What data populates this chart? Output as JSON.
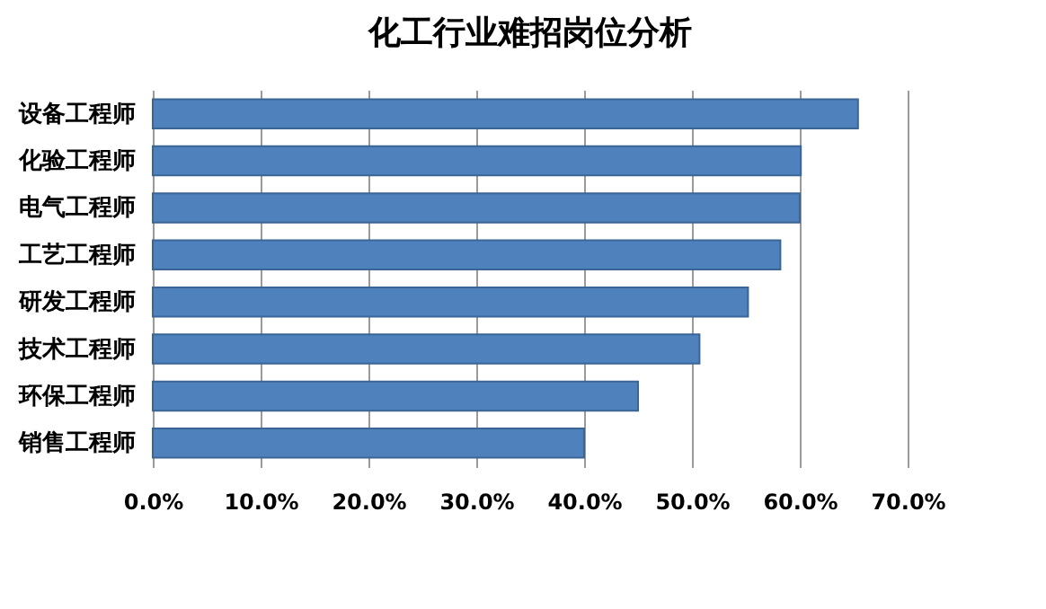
{
  "chart_data": {
    "type": "bar",
    "orientation": "horizontal",
    "title": "化工行业难招岗位分析",
    "categories": [
      "设备工程师",
      "化验工程师",
      "电气工程师",
      "工艺工程师",
      "研发工程师",
      "技术工程师",
      "环保工程师",
      "销售工程师"
    ],
    "values": [
      65.4,
      60.1,
      60.0,
      58.2,
      55.2,
      50.7,
      45.0,
      40.0
    ],
    "color": "#4f81bd",
    "xlim": [
      0,
      70
    ],
    "xticks": [
      {
        "value": 0,
        "label": "0.0%"
      },
      {
        "value": 10,
        "label": "10.0%"
      },
      {
        "value": 20,
        "label": "20.0%"
      },
      {
        "value": 30,
        "label": "30.0%"
      },
      {
        "value": 40,
        "label": "40.0%"
      },
      {
        "value": 50,
        "label": "50.0%"
      },
      {
        "value": 60,
        "label": "60.0%"
      },
      {
        "value": 70,
        "label": "70.0%"
      }
    ],
    "grid": "x"
  }
}
